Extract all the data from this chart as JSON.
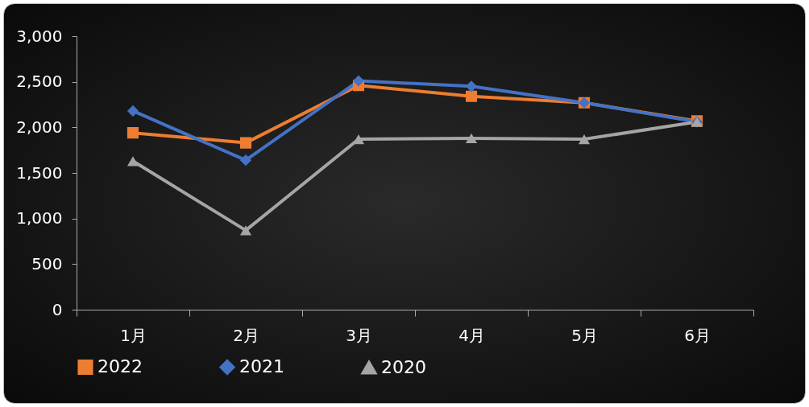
{
  "chart_data": {
    "type": "line",
    "categories": [
      "1月",
      "2月",
      "3月",
      "4月",
      "5月",
      "6月"
    ],
    "series": [
      {
        "name": "2022",
        "color": "#ed7d31",
        "marker": "square",
        "values": [
          1940,
          1830,
          2460,
          2340,
          2270,
          2070
        ]
      },
      {
        "name": "2021",
        "color": "#4472c4",
        "marker": "diamond",
        "values": [
          2180,
          1640,
          2510,
          2450,
          2270,
          2060
        ]
      },
      {
        "name": "2020",
        "color": "#a5a5a5",
        "marker": "triangle",
        "values": [
          1630,
          870,
          1870,
          1880,
          1870,
          2060
        ]
      }
    ],
    "ylim": [
      0,
      3000
    ],
    "yticks": [
      {
        "value": 0,
        "label": "0"
      },
      {
        "value": 500,
        "label": "500"
      },
      {
        "value": 1000,
        "label": "1,000"
      },
      {
        "value": 1500,
        "label": "1,500"
      },
      {
        "value": 2000,
        "label": "2,000"
      },
      {
        "value": 2500,
        "label": "2,500"
      },
      {
        "value": 3000,
        "label": "3,000"
      }
    ],
    "grid": false,
    "legend": "bottom"
  }
}
